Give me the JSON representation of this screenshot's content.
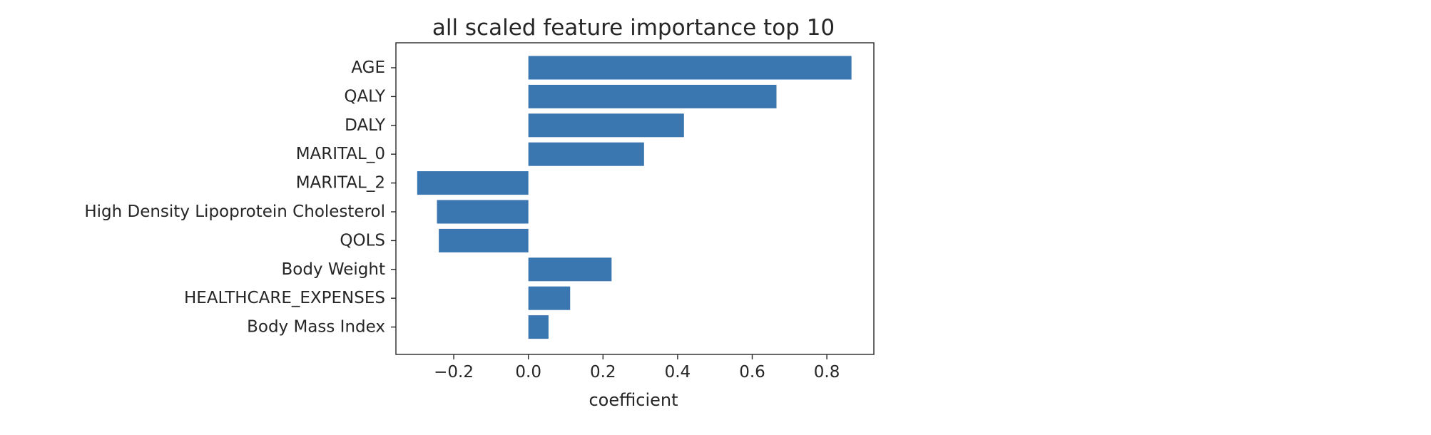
{
  "chart_data": {
    "type": "bar",
    "orientation": "horizontal",
    "title": "all scaled feature importance top 10",
    "xlabel": "coefficient",
    "ylabel": "",
    "categories": [
      "AGE",
      "QALY",
      "DALY",
      "MARITAL_0",
      "MARITAL_2",
      "High Density Lipoprotein Cholesterol",
      "QOLS",
      "Body Weight",
      "HEALTHCARE_EXPENSES",
      "Body Mass Index"
    ],
    "values": [
      0.866,
      0.665,
      0.417,
      0.31,
      -0.298,
      -0.245,
      -0.24,
      0.223,
      0.112,
      0.054
    ],
    "xlim": [
      -0.355,
      0.926
    ],
    "xticks": [
      -0.2,
      0.0,
      0.2,
      0.4,
      0.6,
      0.8
    ],
    "xtick_labels": [
      "−0.2",
      "0.0",
      "0.2",
      "0.4",
      "0.6",
      "0.8"
    ],
    "bar_color": "#3a76af",
    "grid": false,
    "legend": "none"
  }
}
